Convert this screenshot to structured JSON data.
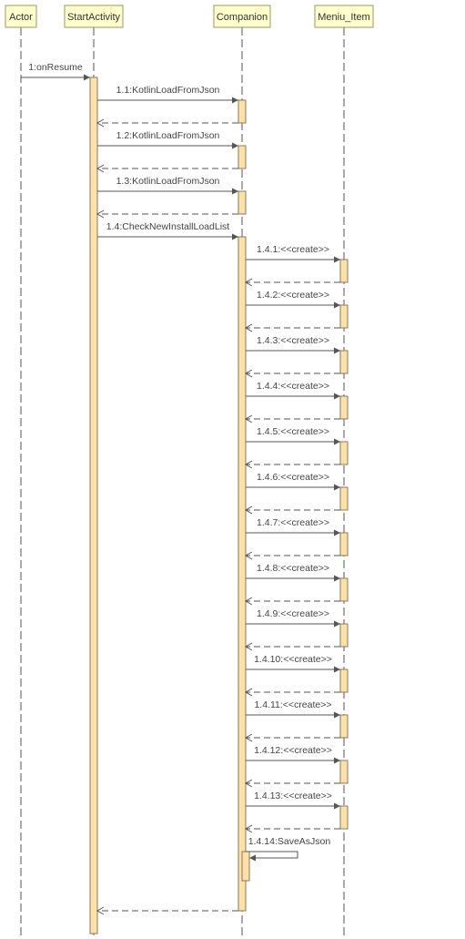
{
  "lifelines": [
    {
      "id": "actor",
      "name": "Actor"
    },
    {
      "id": "startactivity",
      "name": "StartActivity"
    },
    {
      "id": "companion",
      "name": "Companion"
    },
    {
      "id": "meniu_item",
      "name": "Meniu_Item"
    }
  ],
  "messages": [
    {
      "label": "1:onResume",
      "from": "actor",
      "to": "startactivity",
      "return": false
    },
    {
      "label": "1.1:KotlinLoadFromJson",
      "from": "startactivity",
      "to": "companion",
      "return": true
    },
    {
      "label": "1.2:KotlinLoadFromJson",
      "from": "startactivity",
      "to": "companion",
      "return": true
    },
    {
      "label": "1.3:KotlinLoadFromJson",
      "from": "startactivity",
      "to": "companion",
      "return": true
    },
    {
      "label": "1.4:CheckNewInstallLoadList",
      "from": "startactivity",
      "to": "companion",
      "return": false
    },
    {
      "label": "1.4.1:<<create>>",
      "from": "companion",
      "to": "meniu_item",
      "return": true
    },
    {
      "label": "1.4.2:<<create>>",
      "from": "companion",
      "to": "meniu_item",
      "return": true
    },
    {
      "label": "1.4.3:<<create>>",
      "from": "companion",
      "to": "meniu_item",
      "return": true
    },
    {
      "label": "1.4.4:<<create>>",
      "from": "companion",
      "to": "meniu_item",
      "return": true
    },
    {
      "label": "1.4.5:<<create>>",
      "from": "companion",
      "to": "meniu_item",
      "return": true
    },
    {
      "label": "1.4.6:<<create>>",
      "from": "companion",
      "to": "meniu_item",
      "return": true
    },
    {
      "label": "1.4.7:<<create>>",
      "from": "companion",
      "to": "meniu_item",
      "return": true
    },
    {
      "label": "1.4.8:<<create>>",
      "from": "companion",
      "to": "meniu_item",
      "return": true
    },
    {
      "label": "1.4.9:<<create>>",
      "from": "companion",
      "to": "meniu_item",
      "return": true
    },
    {
      "label": "1.4.10:<<create>>",
      "from": "companion",
      "to": "meniu_item",
      "return": true
    },
    {
      "label": "1.4.11:<<create>>",
      "from": "companion",
      "to": "meniu_item",
      "return": true
    },
    {
      "label": "1.4.12:<<create>>",
      "from": "companion",
      "to": "meniu_item",
      "return": true
    },
    {
      "label": "1.4.13:<<create>>",
      "from": "companion",
      "to": "meniu_item",
      "return": true
    },
    {
      "label": "1.4.14:SaveAsJson",
      "from": "companion",
      "to": "companion",
      "return": false
    }
  ]
}
